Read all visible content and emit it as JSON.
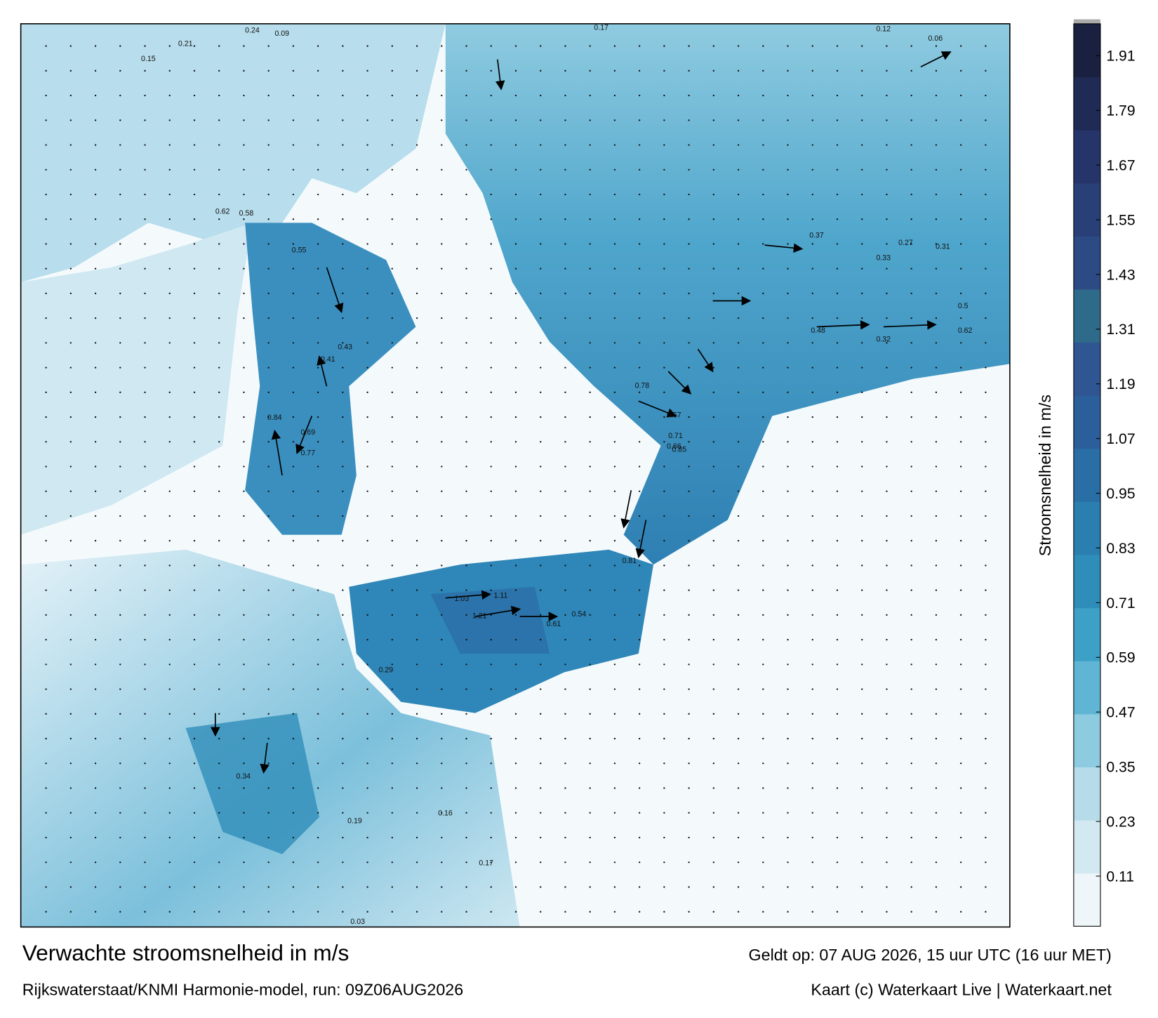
{
  "title": "Verwachte stroomsnelheid in m/s",
  "subtitle": "Rijkswaterstaat/KNMI Harmonie-model, run: 09Z06AUG2026",
  "valid_time": "Geldt op: 07 AUG 2026, 15 uur UTC (16 uur MET)",
  "credit": "Kaart (c) Waterkaart Live | Waterkaart.net",
  "colorbar": {
    "label": "Stroomsnelheid in m/s",
    "lim": [
      0,
      1.98
    ],
    "ticks": [
      0.11,
      0.23,
      0.35,
      0.47,
      0.59,
      0.71,
      0.83,
      0.95,
      1.07,
      1.19,
      1.31,
      1.43,
      1.55,
      1.67,
      1.79,
      1.91
    ],
    "colors": [
      "#eef6f9",
      "#d3e9f1",
      "#b6dce9",
      "#8ccbe0",
      "#5fb5d3",
      "#3da0c6",
      "#2f8db9",
      "#2a7fb0",
      "#2a6ea6",
      "#2b5f9b",
      "#2f5592",
      "#2e6a8a",
      "#2c4a84",
      "#283f78",
      "#25356a",
      "#1f2a55",
      "#1a2140"
    ]
  },
  "map_labels": [
    0.24,
    0.09,
    0.15,
    0.21,
    0.17,
    0.12,
    0.06,
    0.62,
    0.58,
    0.55,
    0.84,
    0.77,
    0.69,
    0.43,
    0.41,
    0.78,
    0.85,
    0.57,
    0.71,
    0.66,
    0.37,
    0.31,
    0.62,
    0.48,
    1.03,
    1.11,
    1.21,
    0.61,
    0.54,
    0.29,
    0.34,
    0.19,
    0.16,
    0.17,
    0.03,
    0.33,
    0.27,
    0.5,
    0.81,
    0.32
  ]
}
